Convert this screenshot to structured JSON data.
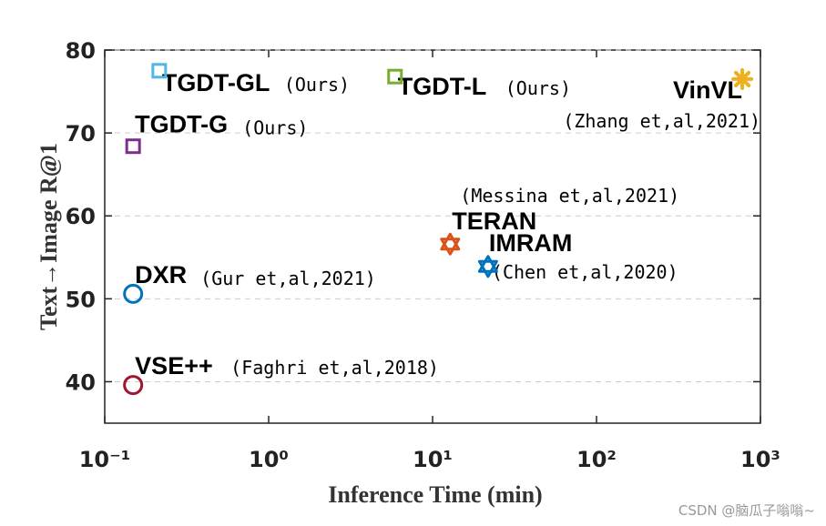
{
  "chart_data": {
    "type": "scatter",
    "xlabel": "Inference Time (min)",
    "ylabel": "Text→Image R@1",
    "xscale": "log",
    "xlim": [
      0.1,
      1000
    ],
    "ylim": [
      35,
      80
    ],
    "xticks": [
      {
        "value": 0.1,
        "label": "10⁻¹"
      },
      {
        "value": 1,
        "label": "10⁰"
      },
      {
        "value": 10,
        "label": "10¹"
      },
      {
        "value": 100,
        "label": "10²"
      },
      {
        "value": 1000,
        "label": "10³"
      }
    ],
    "yticks": [
      40,
      50,
      60,
      70,
      80
    ],
    "grid": true,
    "series": [
      {
        "name": "TGDT-GL",
        "note": "(Ours)",
        "color": "#4db8e8",
        "marker": "square",
        "x": [
          0.215
        ],
        "values": [
          77.5
        ]
      },
      {
        "name": "TGDT-L",
        "note": "(Ours)",
        "color": "#77ac30",
        "marker": "square",
        "x": [
          5.9
        ],
        "values": [
          76.8
        ]
      },
      {
        "name": "VinVL",
        "note": "(Zhang et,al,2021)",
        "color": "#edb120",
        "marker": "asterisk",
        "x": [
          775
        ],
        "values": [
          76.5
        ]
      },
      {
        "name": "TGDT-G",
        "note": "(Ours)",
        "color": "#7e2f8e",
        "marker": "square",
        "x": [
          0.149
        ],
        "values": [
          68.4
        ]
      },
      {
        "name": "TERAN",
        "note": "(Messina et,al,2021)",
        "color": "#d95319",
        "marker": "hexagram",
        "x": [
          12.8
        ],
        "values": [
          56.6
        ]
      },
      {
        "name": "IMRAM",
        "note": "(Chen et,al,2020)",
        "color": "#0072bd",
        "marker": "hexagram",
        "x": [
          21.8
        ],
        "values": [
          53.9
        ]
      },
      {
        "name": "DXR",
        "note": "(Gur et,al,2021)",
        "color": "#0072bd",
        "marker": "circle",
        "x": [
          0.149
        ],
        "values": [
          50.6
        ]
      },
      {
        "name": "VSE++",
        "note": "(Faghri et,al,2018)",
        "color": "#a2142f",
        "marker": "circle",
        "x": [
          0.149
        ],
        "values": [
          39.6
        ]
      }
    ],
    "watermark": "CSDN @脑瓜子嗡嗡~"
  }
}
